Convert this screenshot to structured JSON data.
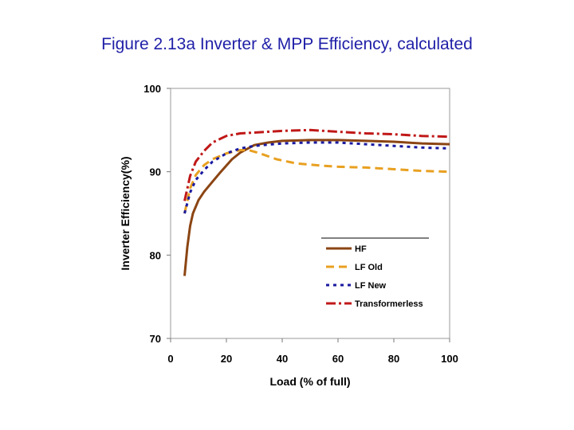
{
  "title": "Figure 2.13a Inverter & MPP Efficiency, calculated",
  "chart_data": {
    "type": "line",
    "xlabel": "Load (% of full)",
    "ylabel": "Inverter Efficiency(%)",
    "xlim": [
      0,
      100
    ],
    "ylim": [
      70,
      100
    ],
    "xticks": [
      0,
      20,
      40,
      60,
      80,
      100
    ],
    "yticks": [
      70,
      80,
      90,
      100
    ],
    "grid": false,
    "legend_position": "lower-right",
    "series": [
      {
        "name": "HF",
        "color": "#8b4513",
        "dash": "solid",
        "points": [
          [
            5,
            77.5
          ],
          [
            6,
            81
          ],
          [
            7,
            83.5
          ],
          [
            8,
            85
          ],
          [
            10,
            86.6
          ],
          [
            12,
            87.6
          ],
          [
            15,
            88.8
          ],
          [
            18,
            90
          ],
          [
            22,
            91.5
          ],
          [
            25,
            92.3
          ],
          [
            30,
            93.2
          ],
          [
            35,
            93.5
          ],
          [
            40,
            93.7
          ],
          [
            50,
            93.8
          ],
          [
            60,
            93.8
          ],
          [
            70,
            93.7
          ],
          [
            80,
            93.6
          ],
          [
            90,
            93.4
          ],
          [
            100,
            93.3
          ]
        ]
      },
      {
        "name": "LF Old",
        "color": "#e8a020",
        "dash": "10,6",
        "points": [
          [
            5,
            85
          ],
          [
            7,
            88
          ],
          [
            9,
            89.6
          ],
          [
            12,
            90.8
          ],
          [
            15,
            91.5
          ],
          [
            20,
            92.2
          ],
          [
            25,
            92.6
          ],
          [
            28,
            92.6
          ],
          [
            32,
            92.2
          ],
          [
            38,
            91.5
          ],
          [
            45,
            91
          ],
          [
            55,
            90.7
          ],
          [
            60,
            90.6
          ],
          [
            70,
            90.5
          ],
          [
            80,
            90.3
          ],
          [
            90,
            90.1
          ],
          [
            100,
            90.0
          ]
        ]
      },
      {
        "name": "LF New",
        "color": "#1a1aa0",
        "dash": "4,5",
        "points": [
          [
            5,
            85
          ],
          [
            7,
            87.5
          ],
          [
            9,
            89
          ],
          [
            12,
            90.2
          ],
          [
            15,
            91.2
          ],
          [
            20,
            92.2
          ],
          [
            25,
            92.8
          ],
          [
            30,
            93.1
          ],
          [
            40,
            93.4
          ],
          [
            50,
            93.5
          ],
          [
            60,
            93.5
          ],
          [
            70,
            93.3
          ],
          [
            80,
            93.1
          ],
          [
            90,
            92.9
          ],
          [
            100,
            92.8
          ]
        ]
      },
      {
        "name": "Transformerless",
        "color": "#c01818",
        "dash": "12,4,3,4",
        "points": [
          [
            5,
            86.5
          ],
          [
            7,
            89.5
          ],
          [
            9,
            91.2
          ],
          [
            12,
            92.5
          ],
          [
            15,
            93.5
          ],
          [
            20,
            94.3
          ],
          [
            25,
            94.6
          ],
          [
            30,
            94.7
          ],
          [
            40,
            94.9
          ],
          [
            50,
            95
          ],
          [
            60,
            94.8
          ],
          [
            70,
            94.6
          ],
          [
            80,
            94.5
          ],
          [
            90,
            94.3
          ],
          [
            100,
            94.2
          ]
        ]
      }
    ]
  }
}
